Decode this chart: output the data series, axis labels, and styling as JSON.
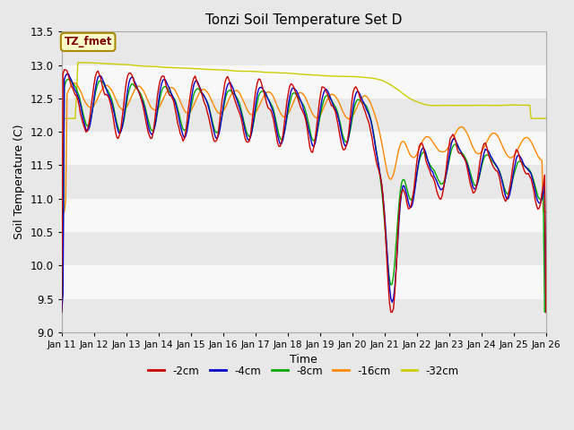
{
  "title": "Tonzi Soil Temperature Set D",
  "xlabel": "Time",
  "ylabel": "Soil Temperature (C)",
  "ylim": [
    9.0,
    13.5
  ],
  "yticks": [
    9.0,
    9.5,
    10.0,
    10.5,
    11.0,
    11.5,
    12.0,
    12.5,
    13.0,
    13.5
  ],
  "x_labels": [
    "Jan 11",
    "Jan 12",
    "Jan 13",
    "Jan 14",
    "Jan 15",
    "Jan 16",
    "Jan 17",
    "Jan 18",
    "Jan 19",
    "Jan 20",
    "Jan 21",
    "Jan 22",
    "Jan 23",
    "Jan 24",
    "Jan 25",
    "Jan 26"
  ],
  "legend_label": "TZ_fmet",
  "series_labels": [
    "-2cm",
    "-4cm",
    "-8cm",
    "-16cm",
    "-32cm"
  ],
  "series_colors": [
    "#cc0000",
    "#0000cc",
    "#00aa00",
    "#ff8800",
    "#cccc00"
  ],
  "line_width": 1.0,
  "bg_color": "#e8e8e8",
  "band_colors": [
    "#e8e8e8",
    "#f8f8f8"
  ],
  "grid_color": "#ffffff"
}
